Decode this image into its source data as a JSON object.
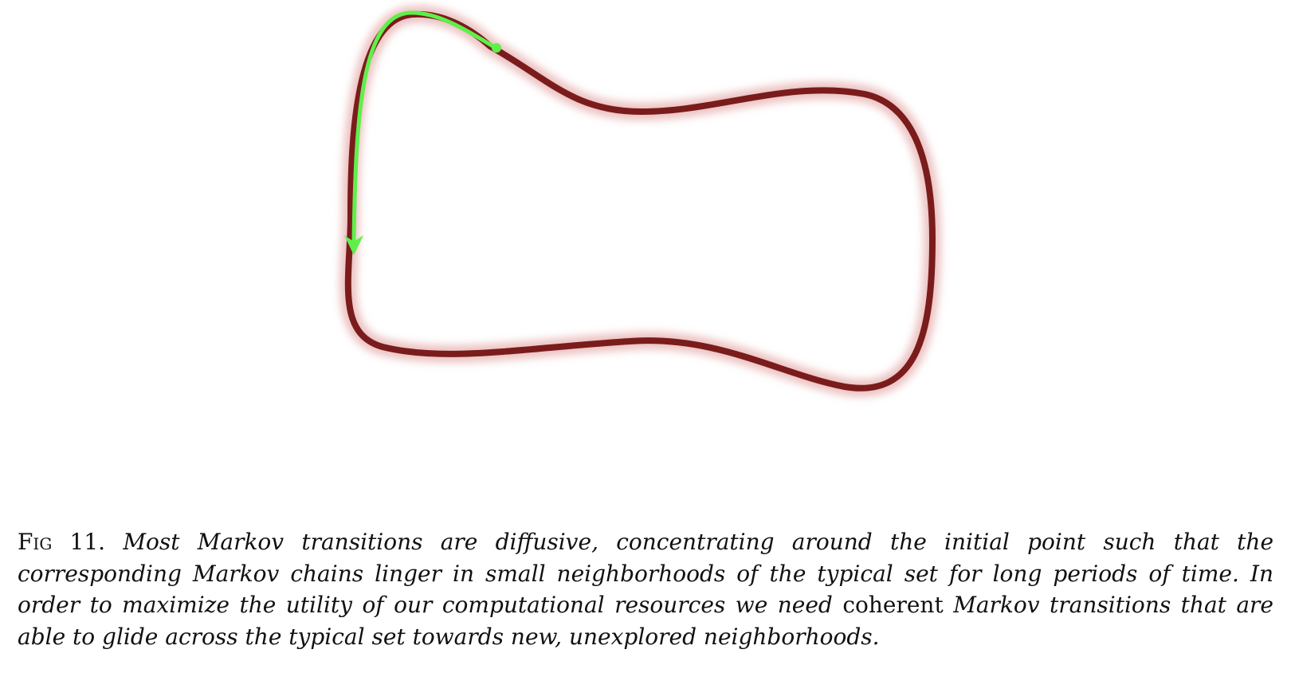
{
  "figure": {
    "typical_set_color": "#7a1c1c",
    "typical_set_glow_color": "#c45a5a",
    "trajectory_color": "#5ef04a"
  },
  "caption": {
    "label": "Fig 11.",
    "text_part1": "Most Markov transitions are diffusive, concentrating around the initial point such that the corresponding Markov chains linger in small neighborhoods of the typical set for long periods of time. In order to maximize the utility of our computational resources we need",
    "emphasis": "coherent",
    "text_part2": "Markov transitions that are able to glide across the typical set towards new, unexplored neighborhoods."
  }
}
